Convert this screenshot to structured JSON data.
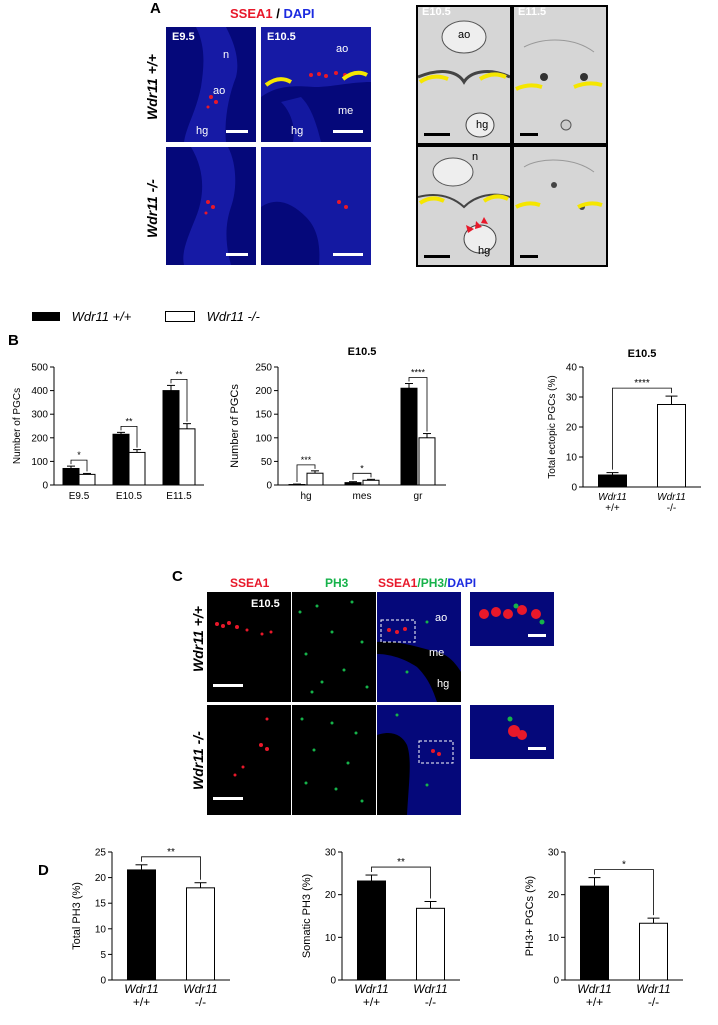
{
  "panels": {
    "A": "A",
    "B": "B",
    "C": "C",
    "D": "D"
  },
  "panelA": {
    "header_red": "SSEA1",
    "header_sep": " / ",
    "header_blue": "DAPI",
    "rows": [
      "Wdr11 +/+",
      "Wdr11 -/-"
    ],
    "stage_1": "E9.5",
    "stage_2": "E10.5",
    "gray_stage_1": "E10.5",
    "gray_stage_2": "E11.5",
    "labels": {
      "n": "n",
      "ao": "ao",
      "hg": "hg",
      "me": "me"
    }
  },
  "legendB": {
    "filled": "Wdr11 +/+",
    "open": "Wdr11 -/-"
  },
  "panelC": {
    "ch1": "SSEA1",
    "ch2": "PH3",
    "merge_1": "SSEA1",
    "merge_2": "/PH3/",
    "merge_3": "DAPI",
    "stage": "E10.5",
    "rows": [
      "Wdr11 +/+",
      "Wdr11 -/-"
    ],
    "labels": {
      "ao": "ao",
      "me": "me",
      "hg": "hg"
    }
  },
  "colors": {
    "ssea1": "#e8182a",
    "ph3": "#16b24a",
    "dapi": "#1c2be0",
    "annotation": "#f5e600",
    "arrow": "#e8182a",
    "filled_bar": "#000000",
    "open_bar": "#ffffff"
  },
  "chart_data": [
    {
      "id": "B1",
      "type": "bar",
      "title": "",
      "categories": [
        "E9.5",
        "E10.5",
        "E11.5"
      ],
      "ylabel": "Number of PGCs",
      "ylim": [
        0,
        500
      ],
      "yticks": [
        0,
        100,
        200,
        300,
        400,
        500
      ],
      "series": [
        {
          "name": "Wdr11 +/+",
          "values": [
            70,
            215,
            400
          ],
          "errors": [
            10,
            8,
            22
          ]
        },
        {
          "name": "Wdr11 -/-",
          "values": [
            45,
            138,
            238
          ],
          "errors": [
            4,
            12,
            22
          ]
        }
      ],
      "significance": [
        "*",
        "**",
        "**"
      ]
    },
    {
      "id": "B2",
      "type": "bar",
      "title": "E10.5",
      "categories": [
        "hg",
        "mes",
        "gr"
      ],
      "ylabel": "Number of PGCs",
      "ylim": [
        0,
        250
      ],
      "yticks": [
        0,
        50,
        100,
        150,
        200,
        250
      ],
      "series": [
        {
          "name": "Wdr11 +/+",
          "values": [
            1,
            5,
            205
          ],
          "errors": [
            1,
            2,
            10
          ]
        },
        {
          "name": "Wdr11 -/-",
          "values": [
            25,
            10,
            100
          ],
          "errors": [
            5,
            2,
            9
          ]
        }
      ],
      "significance": [
        "***",
        "*",
        "****"
      ]
    },
    {
      "id": "B3",
      "type": "bar",
      "title": "E10.5",
      "categories": [
        "Wdr11\n+/+",
        "Wdr11\n-/-"
      ],
      "ylabel": "Total ectopic PGCs (%)",
      "ylim": [
        0,
        40
      ],
      "yticks": [
        0,
        10,
        20,
        30,
        40
      ],
      "values": [
        4,
        27.5
      ],
      "errors": [
        0.8,
        2.8
      ],
      "significance": [
        "****"
      ]
    },
    {
      "id": "D1",
      "type": "bar",
      "title": "",
      "categories": [
        "Wdr11\n+/+",
        "Wdr11\n-/-"
      ],
      "ylabel": "Total PH3 (%)",
      "ylim": [
        0,
        25
      ],
      "yticks": [
        0,
        5,
        10,
        15,
        20,
        25
      ],
      "values": [
        21.5,
        18
      ],
      "errors": [
        1,
        1
      ],
      "significance": [
        "**"
      ]
    },
    {
      "id": "D2",
      "type": "bar",
      "title": "",
      "categories": [
        "Wdr11\n+/+",
        "Wdr11\n-/-"
      ],
      "ylabel": "Somatic PH3 (%)",
      "ylim": [
        0,
        30
      ],
      "yticks": [
        0,
        10,
        20,
        30
      ],
      "values": [
        23.2,
        16.8
      ],
      "errors": [
        1.4,
        1.6
      ],
      "significance": [
        "**"
      ]
    },
    {
      "id": "D3",
      "type": "bar",
      "title": "",
      "categories": [
        "Wdr11\n+/+",
        "Wdr11\n-/-"
      ],
      "ylabel": "PH3+ PGCs (%)",
      "ylim": [
        0,
        30
      ],
      "yticks": [
        0,
        10,
        20,
        30
      ],
      "values": [
        22,
        13.3
      ],
      "errors": [
        2,
        1.2
      ],
      "significance": [
        "*"
      ]
    }
  ]
}
